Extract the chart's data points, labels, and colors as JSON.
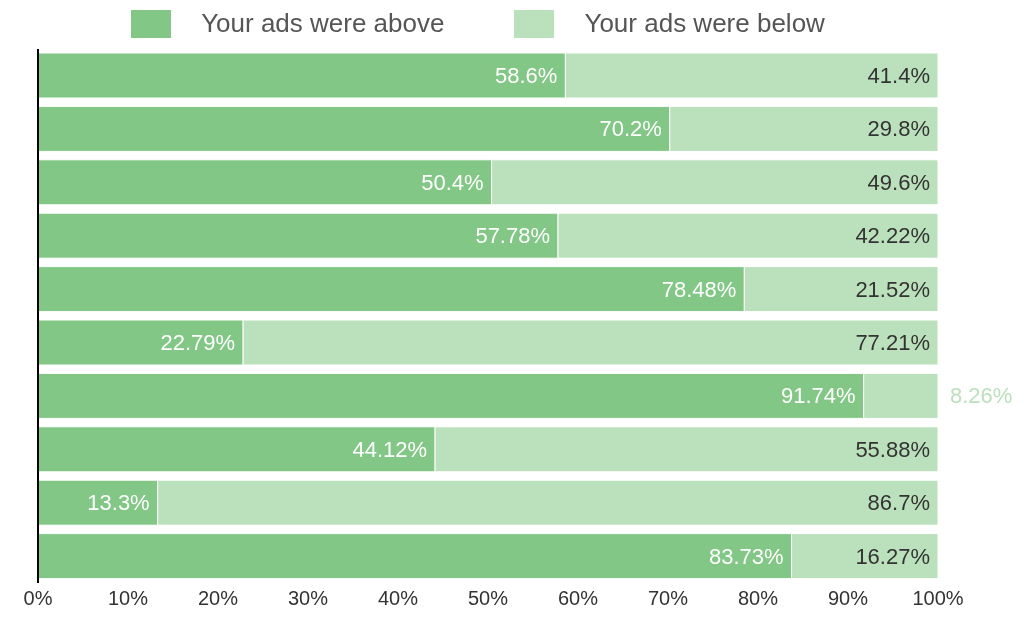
{
  "chart_data": {
    "type": "bar",
    "orientation": "horizontal",
    "stacked": true,
    "categories": [
      null,
      null,
      null,
      null,
      null,
      null,
      null,
      null,
      null,
      null
    ],
    "series": [
      {
        "name": "Your ads were above",
        "color": "#82c785",
        "values": [
          58.6,
          70.2,
          50.4,
          57.78,
          78.48,
          22.79,
          91.74,
          44.12,
          13.3,
          83.73
        ],
        "value_labels": [
          "58.6%",
          "70.2%",
          "50.4%",
          "57.78%",
          "78.48%",
          "22.79%",
          "91.74%",
          "44.12%",
          "13.3%",
          "83.73%"
        ]
      },
      {
        "name": "Your ads were below",
        "color": "#bbe0bc",
        "values": [
          41.4,
          29.8,
          49.6,
          42.22,
          21.52,
          77.21,
          8.26,
          55.88,
          86.7,
          16.27
        ],
        "value_labels": [
          "41.4%",
          "29.8%",
          "49.6%",
          "42.22%",
          "21.52%",
          "77.21%",
          "8.26%",
          "55.88%",
          "86.7%",
          "16.27%"
        ]
      }
    ],
    "xlim": [
      0,
      100
    ],
    "xticks": [
      {
        "value": 0,
        "label": "0%"
      },
      {
        "value": 10,
        "label": "10%"
      },
      {
        "value": 20,
        "label": "20%"
      },
      {
        "value": 30,
        "label": "30%"
      },
      {
        "value": 40,
        "label": "40%"
      },
      {
        "value": 50,
        "label": "50%"
      },
      {
        "value": 60,
        "label": "60%"
      },
      {
        "value": 70,
        "label": "70%"
      },
      {
        "value": 80,
        "label": "80%"
      },
      {
        "value": 90,
        "label": "90%"
      },
      {
        "value": 100,
        "label": "100%"
      }
    ],
    "grid": false,
    "legend": "top",
    "tick_labels": "x"
  }
}
